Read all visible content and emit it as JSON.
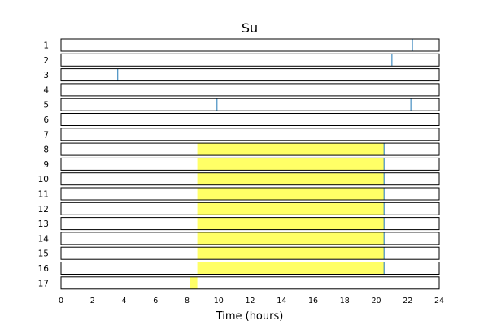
{
  "chart_data": {
    "type": "event-raster",
    "title": "Su",
    "xlabel": "Time (hours)",
    "xlim": [
      0,
      24
    ],
    "x_ticks": [
      "0",
      "2",
      "4",
      "6",
      "8",
      "10",
      "12",
      "14",
      "16",
      "18",
      "20",
      "22",
      "24"
    ],
    "rows": [
      "1",
      "2",
      "3",
      "4",
      "5",
      "6",
      "7",
      "8",
      "9",
      "10",
      "11",
      "12",
      "13",
      "14",
      "15",
      "16",
      "17"
    ],
    "colors": {
      "event": "#1f77b4",
      "active": "#ffff66",
      "frame": "#000000"
    },
    "events": [
      {
        "row": "1",
        "times": [
          22.3
        ]
      },
      {
        "row": "2",
        "times": [
          21.0
        ]
      },
      {
        "row": "3",
        "times": [
          3.6
        ]
      },
      {
        "row": "4",
        "times": []
      },
      {
        "row": "5",
        "times": [
          9.9,
          22.2
        ]
      },
      {
        "row": "6",
        "times": []
      },
      {
        "row": "7",
        "times": []
      },
      {
        "row": "8",
        "times": [
          20.5
        ]
      },
      {
        "row": "9",
        "times": [
          20.5
        ]
      },
      {
        "row": "10",
        "times": [
          20.5
        ]
      },
      {
        "row": "11",
        "times": [
          20.5
        ]
      },
      {
        "row": "12",
        "times": [
          20.5
        ]
      },
      {
        "row": "13",
        "times": [
          20.5
        ]
      },
      {
        "row": "14",
        "times": [
          20.5
        ]
      },
      {
        "row": "15",
        "times": [
          20.5
        ]
      },
      {
        "row": "16",
        "times": [
          20.5
        ]
      },
      {
        "row": "17",
        "times": []
      }
    ],
    "active_spans": [
      {
        "row": "8",
        "start": 8.65,
        "end": 20.5
      },
      {
        "row": "9",
        "start": 8.65,
        "end": 20.5
      },
      {
        "row": "10",
        "start": 8.65,
        "end": 20.5
      },
      {
        "row": "11",
        "start": 8.65,
        "end": 20.5
      },
      {
        "row": "12",
        "start": 8.65,
        "end": 20.5
      },
      {
        "row": "13",
        "start": 8.65,
        "end": 20.5
      },
      {
        "row": "14",
        "start": 8.65,
        "end": 20.5
      },
      {
        "row": "15",
        "start": 8.65,
        "end": 20.5
      },
      {
        "row": "16",
        "start": 8.65,
        "end": 20.5
      },
      {
        "row": "17",
        "start": 8.2,
        "end": 8.65
      }
    ]
  }
}
